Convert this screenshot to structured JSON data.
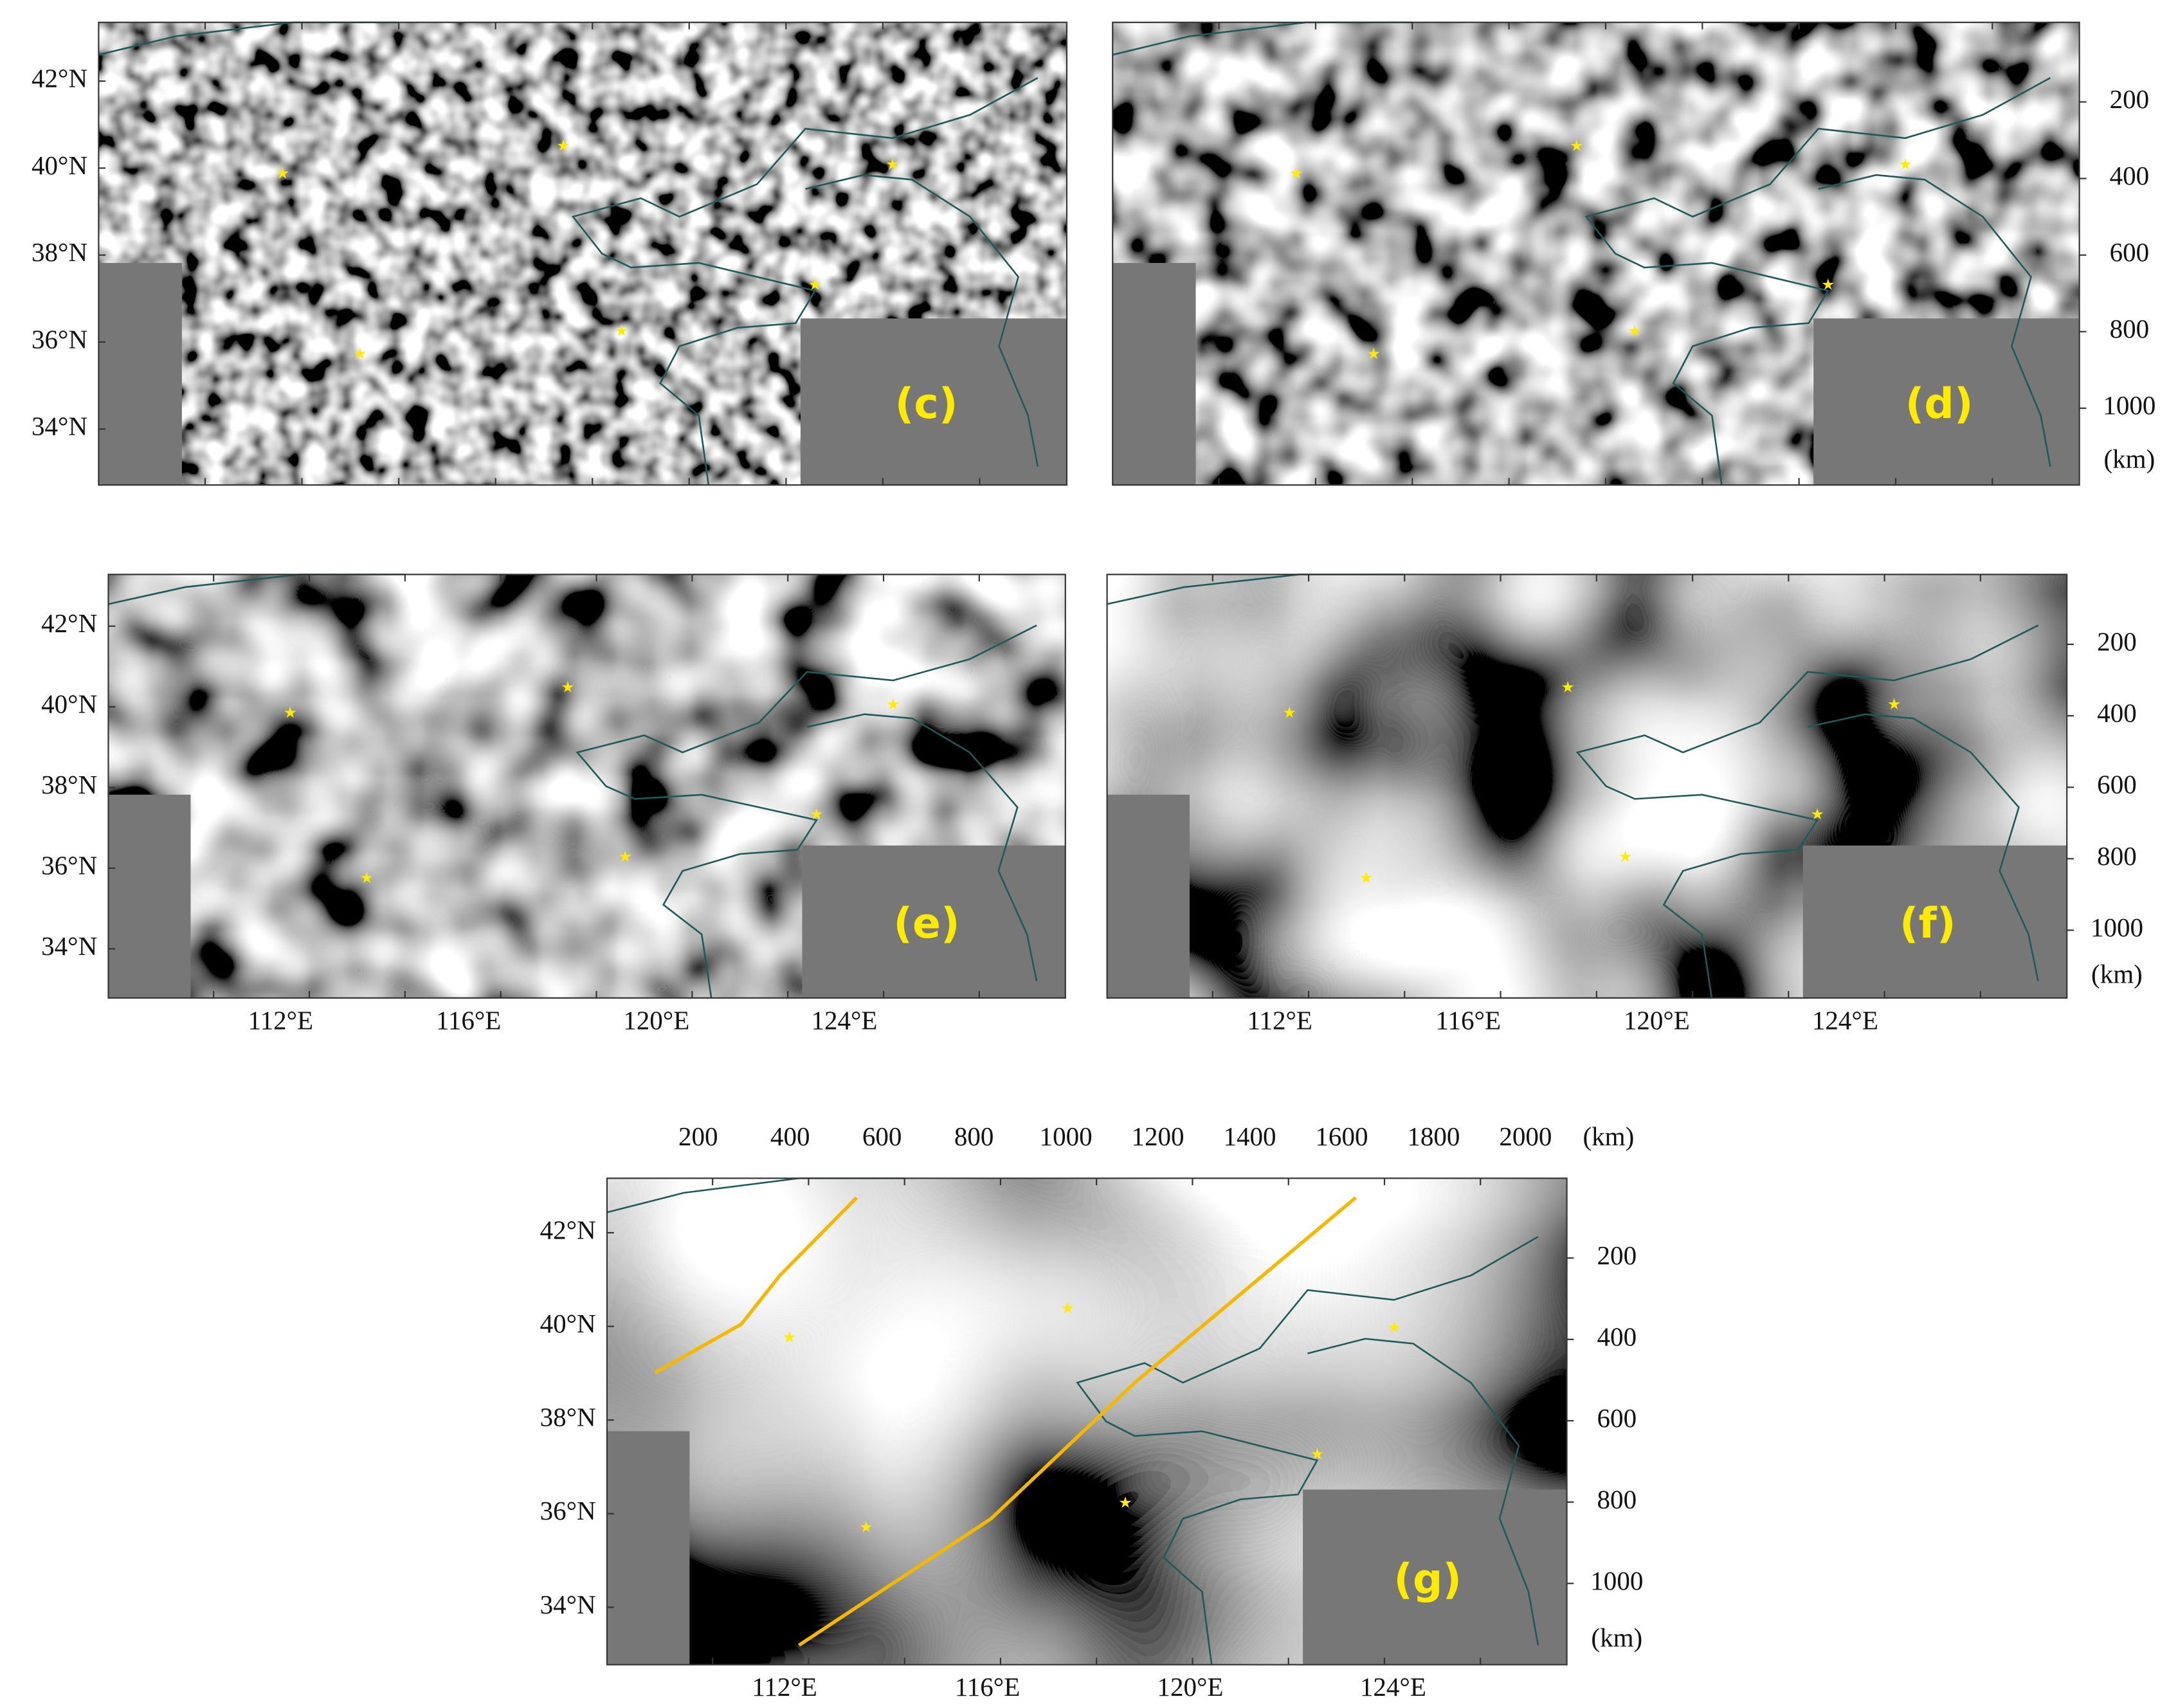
{
  "panels": [
    {
      "label": "(c)",
      "lat_labels": [
        "42°N",
        "40°N",
        "38°N",
        "36°N",
        "34°N"
      ]
    },
    {
      "label": "(d)",
      "km_labels": [
        200,
        400,
        600,
        800,
        1000
      ],
      "km_unit": "(km)"
    },
    {
      "label": "(e)",
      "lat_labels": [
        "42°N",
        "40°N",
        "38°N",
        "36°N",
        "34°N"
      ],
      "lon_labels": [
        "112°E",
        "116°E",
        "120°E",
        "124°E"
      ]
    },
    {
      "label": "(f)",
      "km_labels": [
        200,
        400,
        600,
        800,
        1000
      ],
      "km_unit": "(km)",
      "lon_labels": [
        "112°E",
        "116°E",
        "120°E",
        "124°E"
      ]
    },
    {
      "label": "(g)",
      "lat_labels": [
        "42°N",
        "40°N",
        "38°N",
        "36°N",
        "34°N"
      ],
      "lon_labels": [
        "112°E",
        "116°E",
        "120°E",
        "124°E"
      ],
      "km_labels": [
        200,
        400,
        600,
        800,
        1000
      ],
      "km_unit": "(km)",
      "top_km_labels": [
        200,
        400,
        600,
        800,
        1000,
        1200,
        1400,
        1600,
        1800,
        2000
      ],
      "top_km_unit": "(km)"
    }
  ]
}
